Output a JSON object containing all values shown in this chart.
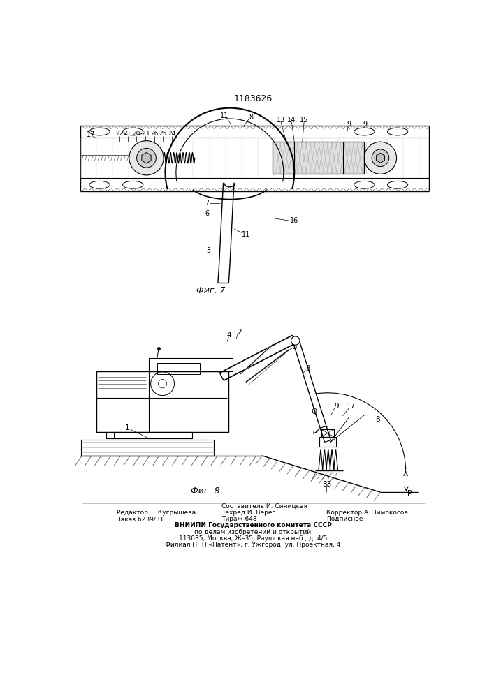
{
  "patent_number": "1183626",
  "fig1_label": "Фиг. 7",
  "fig2_label": "Фиг. 8",
  "footer_left_line1": "Редактор Т. Кугрышева",
  "footer_left_line2": "Заказ 6239/31",
  "footer_center_line1": "Составитель И. Синицкая",
  "footer_center_line2": "Техред И. Верес",
  "footer_center_line3": "Тираж 648",
  "footer_right_line1": "Корректор А. Зимокосов",
  "footer_right_line2": "Подписное",
  "footer_vnipi_line1": "ВНИИПИ Государственного комитета СССР",
  "footer_vnipi_line2": "по делам изобретений и открытий",
  "footer_vnipi_line3": "113035, Москва, Ж–35, Раушская наб., д. 4/5",
  "footer_vnipi_line4": "Филиал ППП «Патент», г. Ужгород, ул. Проектная, 4",
  "bg_color": "#ffffff"
}
